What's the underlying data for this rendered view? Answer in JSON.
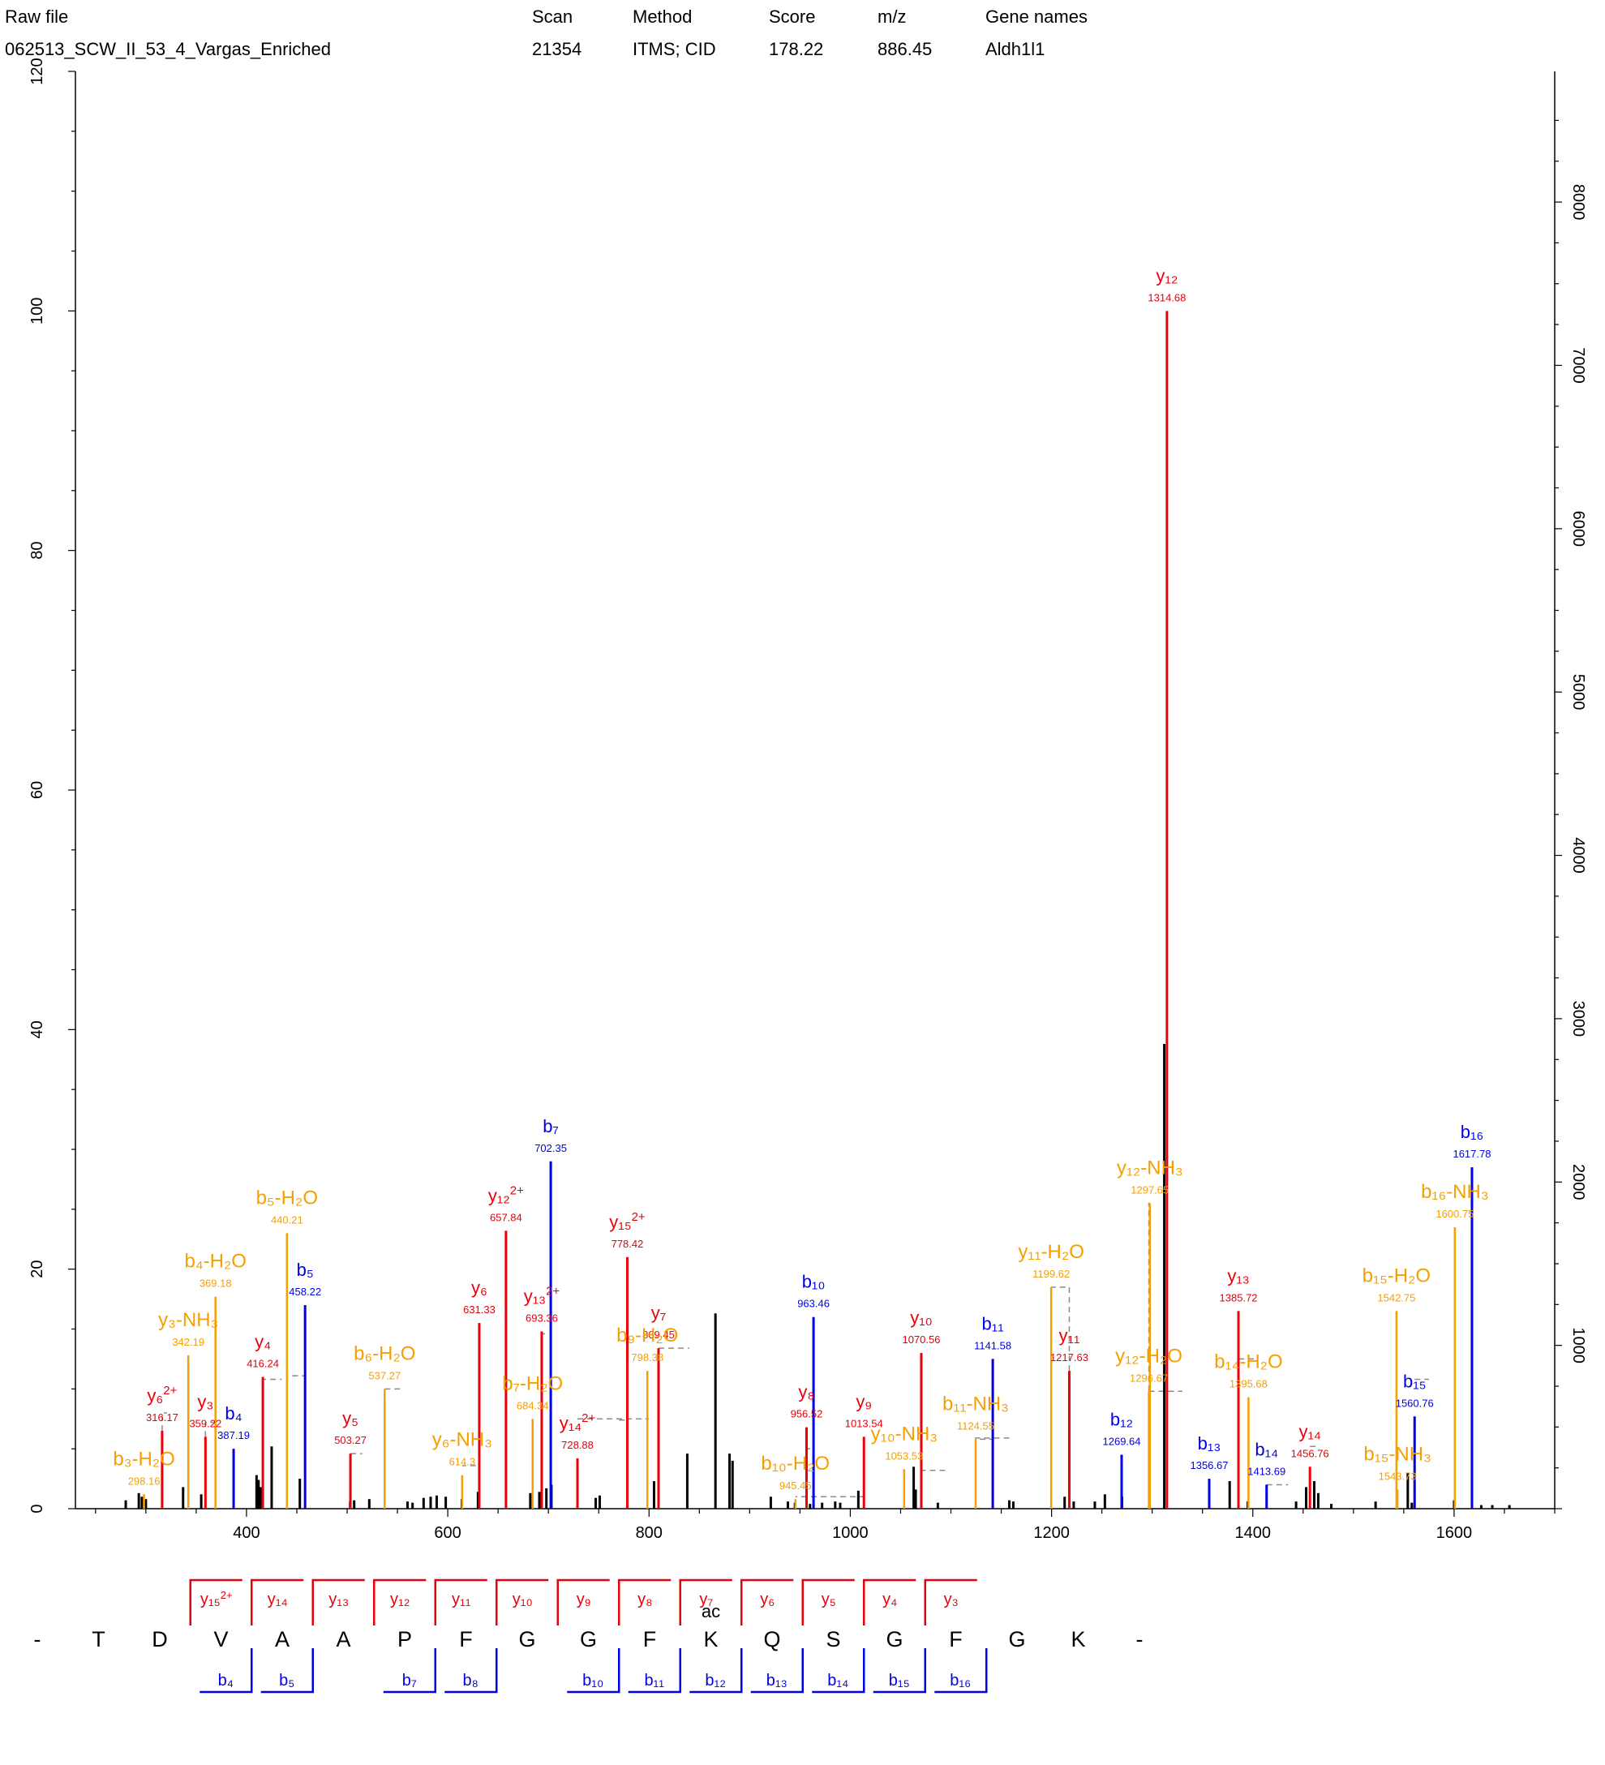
{
  "header": {
    "columns": [
      "Raw file",
      "Scan",
      "Method",
      "Score",
      "m/z",
      "Gene names"
    ],
    "values": [
      "062513_SCW_II_53_4_Vargas_Enriched",
      "21354",
      "ITMS; CID",
      "178.22",
      "886.45",
      "Aldh1l1"
    ]
  },
  "colors": {
    "y": "#e8000a",
    "b": "#0000e6",
    "neutral_loss": "#f5a000",
    "unassigned": "#000000",
    "guide": "#8a8a8a"
  },
  "chart_data": {
    "type": "bar",
    "title": "",
    "xlabel": "",
    "ylabel": "",
    "xlim": [
      230,
      1700
    ],
    "ylim": [
      0,
      120
    ],
    "ylim_right": [
      0,
      8800
    ],
    "x_ticks": [
      400,
      600,
      800,
      1000,
      1200,
      1400,
      1600
    ],
    "y_ticks": [
      0,
      20,
      40,
      60,
      80,
      100,
      120
    ],
    "y_ticks_right": [
      1000,
      2000,
      3000,
      4000,
      5000,
      6000,
      7000,
      8000
    ],
    "grid": false,
    "legend": "none",
    "annotated_peaks": [
      {
        "label": "y12",
        "sup": "",
        "x": 1314.68,
        "y": 100,
        "mz": "1314.68",
        "ion": "y"
      },
      {
        "label": "b7",
        "sup": "",
        "x": 702.35,
        "y": 29,
        "mz": "702.35",
        "ion": "b"
      },
      {
        "label": "b16",
        "sup": "",
        "x": 1617.78,
        "y": 28.5,
        "mz": "1617.78",
        "ion": "b"
      },
      {
        "label": "y12-NH3",
        "sup": "",
        "x": 1297.65,
        "y": 25.5,
        "mz": "1297.65",
        "ion": "nl"
      },
      {
        "label": "b16-NH3",
        "sup": "",
        "x": 1600.75,
        "y": 23.5,
        "mz": "1600.75",
        "ion": "nl"
      },
      {
        "label": "y12",
        "sup": "2+",
        "x": 657.84,
        "y": 23.2,
        "mz": "657.84",
        "ion": "y"
      },
      {
        "label": "b5-H2O",
        "sup": "",
        "x": 440.21,
        "y": 23,
        "mz": "440.21",
        "ion": "nl"
      },
      {
        "label": "y15",
        "sup": "2+",
        "x": 778.42,
        "y": 21,
        "mz": "778.42",
        "ion": "y"
      },
      {
        "label": "b4-H2O",
        "sup": "",
        "x": 369.18,
        "y": 17.7,
        "mz": "369.18",
        "ion": "nl"
      },
      {
        "label": "y11-H2O",
        "sup": "",
        "x": 1199.62,
        "y": 18.5,
        "mz": "1199.62",
        "ion": "nl"
      },
      {
        "label": "b5",
        "sup": "",
        "x": 458.22,
        "y": 17,
        "mz": "458.22",
        "ion": "b"
      },
      {
        "label": "b15-H2O",
        "sup": "",
        "x": 1542.75,
        "y": 16.5,
        "mz": "1542.75",
        "ion": "nl"
      },
      {
        "label": "y6",
        "sup": "",
        "x": 631.33,
        "y": 15.5,
        "mz": "631.33",
        "ion": "y"
      },
      {
        "label": "y13",
        "sup": "2+",
        "x": 693.36,
        "y": 14.8,
        "mz": "693.36",
        "ion": "y"
      },
      {
        "label": "b10",
        "sup": "",
        "x": 963.46,
        "y": 16,
        "mz": "963.46",
        "ion": "b"
      },
      {
        "label": "y13",
        "sup": "",
        "x": 1385.72,
        "y": 16.5,
        "mz": "1385.72",
        "ion": "y"
      },
      {
        "label": "y7",
        "sup": "",
        "x": 809.45,
        "y": 13.4,
        "mz": "809.45",
        "ion": "y"
      },
      {
        "label": "y3-NH3",
        "sup": "",
        "x": 342.19,
        "y": 12.8,
        "mz": "342.19",
        "ion": "nl"
      },
      {
        "label": "b9-H2O",
        "sup": "",
        "x": 798.38,
        "y": 11.5,
        "mz": "798.38",
        "ion": "nl"
      },
      {
        "label": "y10",
        "sup": "",
        "x": 1070.56,
        "y": 13,
        "mz": "1070.56",
        "ion": "y"
      },
      {
        "label": "b11",
        "sup": "",
        "x": 1141.58,
        "y": 12.5,
        "mz": "1141.58",
        "ion": "b"
      },
      {
        "label": "y4",
        "sup": "",
        "x": 416.24,
        "y": 11,
        "mz": "416.24",
        "ion": "y"
      },
      {
        "label": "b6-H2O",
        "sup": "",
        "x": 537.27,
        "y": 10,
        "mz": "537.27",
        "ion": "nl"
      },
      {
        "label": "y11",
        "sup": "",
        "x": 1217.63,
        "y": 11.5,
        "mz": "1217.63",
        "ion": "y"
      },
      {
        "label": "y12-H2O",
        "sup": "",
        "x": 1296.67,
        "y": 9.8,
        "mz": "1296.67",
        "ion": "nl"
      },
      {
        "label": "b14-H2O",
        "sup": "",
        "x": 1395.68,
        "y": 9.3,
        "mz": "1395.68",
        "ion": "nl"
      },
      {
        "label": "b7-H2O",
        "sup": "",
        "x": 684.34,
        "y": 7.5,
        "mz": "684.34",
        "ion": "nl"
      },
      {
        "label": "y6",
        "sup": "2+",
        "x": 316.17,
        "y": 6.5,
        "mz": "316.17",
        "ion": "y"
      },
      {
        "label": "b4",
        "sup": "",
        "x": 387.19,
        "y": 5,
        "mz": "387.19",
        "ion": "b"
      },
      {
        "label": "y8",
        "sup": "",
        "x": 956.52,
        "y": 6.8,
        "mz": "956.52",
        "ion": "y"
      },
      {
        "label": "y9",
        "sup": "",
        "x": 1013.54,
        "y": 6,
        "mz": "1013.54",
        "ion": "y"
      },
      {
        "label": "b15",
        "sup": "",
        "x": 1560.76,
        "y": 7.7,
        "mz": "1560.76",
        "ion": "b"
      },
      {
        "label": "y5",
        "sup": "",
        "x": 503.27,
        "y": 4.6,
        "mz": "503.27",
        "ion": "y"
      },
      {
        "label": "y3",
        "sup": "",
        "x": 359.22,
        "y": 6,
        "mz": "359.22",
        "ion": "y"
      },
      {
        "label": "y14",
        "sup": "2+",
        "x": 728.88,
        "y": 4.2,
        "mz": "728.88",
        "ion": "y"
      },
      {
        "label": "b11-NH3",
        "sup": "",
        "x": 1124.55,
        "y": 5.8,
        "mz": "1124.55",
        "ion": "nl"
      },
      {
        "label": "b12",
        "sup": "",
        "x": 1269.64,
        "y": 4.5,
        "mz": "1269.64",
        "ion": "b"
      },
      {
        "label": "y6-NH3",
        "sup": "",
        "x": 614.3,
        "y": 2.8,
        "mz": "614.3",
        "ion": "nl"
      },
      {
        "label": "y10-NH3",
        "sup": "",
        "x": 1053.53,
        "y": 3.3,
        "mz": "1053.53",
        "ion": "nl"
      },
      {
        "label": "b13",
        "sup": "",
        "x": 1356.67,
        "y": 2.5,
        "mz": "1356.67",
        "ion": "b"
      },
      {
        "label": "b14",
        "sup": "",
        "x": 1413.69,
        "y": 2,
        "mz": "1413.69",
        "ion": "b"
      },
      {
        "label": "y14",
        "sup": "",
        "x": 1456.76,
        "y": 3.5,
        "mz": "1456.76",
        "ion": "y"
      },
      {
        "label": "b3-H2O",
        "sup": "",
        "x": 298.16,
        "y": 1.2,
        "mz": "298.16",
        "ion": "nl"
      },
      {
        "label": "b10-H2O",
        "sup": "",
        "x": 945.45,
        "y": 0.8,
        "mz": "945.45",
        "ion": "nl"
      },
      {
        "label": "b15-NH3",
        "sup": "",
        "x": 1543.73,
        "y": 1.6,
        "mz": "1543.73",
        "ion": "nl"
      }
    ],
    "unassigned_peaks": [
      [
        280,
        0.7
      ],
      [
        293,
        1.3
      ],
      [
        296,
        1
      ],
      [
        300,
        0.8
      ],
      [
        337,
        1.8
      ],
      [
        355,
        1.2
      ],
      [
        410,
        2.8
      ],
      [
        412,
        2.4
      ],
      [
        414,
        1.8
      ],
      [
        425,
        5.2
      ],
      [
        453,
        2.5
      ],
      [
        503,
        0.6
      ],
      [
        507,
        0.7
      ],
      [
        522,
        0.8
      ],
      [
        560,
        0.6
      ],
      [
        565,
        0.5
      ],
      [
        576,
        0.9
      ],
      [
        583,
        1
      ],
      [
        589,
        1.1
      ],
      [
        598,
        1
      ],
      [
        614,
        0.8
      ],
      [
        630,
        1.4
      ],
      [
        682,
        1.3
      ],
      [
        691,
        1.4
      ],
      [
        698,
        1.7
      ],
      [
        703,
        2
      ],
      [
        747,
        0.9
      ],
      [
        751,
        1.1
      ],
      [
        805,
        2.3
      ],
      [
        838,
        4.6
      ],
      [
        866,
        16.3
      ],
      [
        880,
        4.6
      ],
      [
        883,
        4
      ],
      [
        921,
        1
      ],
      [
        938,
        0.6
      ],
      [
        945,
        0.5
      ],
      [
        960,
        0.4
      ],
      [
        972,
        0.5
      ],
      [
        985,
        0.6
      ],
      [
        990,
        0.5
      ],
      [
        1008,
        1.5
      ],
      [
        1063,
        3.5
      ],
      [
        1065,
        1.6
      ],
      [
        1087,
        0.5
      ],
      [
        1158,
        0.7
      ],
      [
        1162,
        0.6
      ],
      [
        1213,
        1
      ],
      [
        1222,
        0.6
      ],
      [
        1243,
        0.6
      ],
      [
        1253,
        1.2
      ],
      [
        1270,
        1
      ],
      [
        1312,
        38.8
      ],
      [
        1377,
        2.3
      ],
      [
        1395,
        0.6
      ],
      [
        1443,
        0.6
      ],
      [
        1453,
        1.8
      ],
      [
        1461,
        2.3
      ],
      [
        1465,
        1.3
      ],
      [
        1478,
        0.4
      ],
      [
        1522,
        0.6
      ],
      [
        1554,
        3
      ],
      [
        1558,
        0.5
      ],
      [
        1600,
        0.7
      ],
      [
        1627,
        0.3
      ],
      [
        1638,
        0.3
      ],
      [
        1655,
        0.3
      ]
    ],
    "guide_lines": [
      [
        316.17,
        6.5,
        321,
        8.0
      ],
      [
        359.22,
        6.0,
        373,
        7.2
      ],
      [
        416.24,
        11.0,
        435,
        10.8
      ],
      [
        458.22,
        17.0,
        440.21,
        11.1
      ],
      [
        503.27,
        4.6,
        515,
        4.6
      ],
      [
        537.27,
        10.0,
        555,
        10.0
      ],
      [
        631.33,
        15.5,
        614.3,
        3.6
      ],
      [
        693.36,
        14.8,
        700,
        14.6
      ],
      [
        778.42,
        21.0,
        770,
        7.4
      ],
      [
        809.45,
        13.4,
        840,
        13.4
      ],
      [
        728.88,
        7.5,
        800,
        7.5
      ],
      [
        956.52,
        6.8,
        963.46,
        5.0
      ],
      [
        1013.54,
        6.0,
        945.45,
        1.0
      ],
      [
        1070.56,
        3.3,
        1095,
        3.2
      ],
      [
        1141.58,
        12.5,
        1124.55,
        5.8
      ],
      [
        1124.55,
        5.8,
        1160,
        5.9
      ],
      [
        1217.63,
        11.5,
        1199.62,
        18.5
      ],
      [
        1296.67,
        9.8,
        1297.65,
        25.5
      ],
      [
        1296.67,
        9.8,
        1330,
        9.8
      ],
      [
        1385.72,
        16.5,
        1385.72,
        2.5
      ],
      [
        1385.72,
        12.5,
        1405,
        12.5
      ],
      [
        1413.69,
        2.0,
        1435,
        2.0
      ],
      [
        1456.76,
        5.2,
        1465,
        5.2
      ],
      [
        1542.75,
        16.5,
        1542.75,
        1.6
      ],
      [
        1560.76,
        10.8,
        1575,
        10.8
      ],
      [
        1600.75,
        23.5,
        1600.75,
        0.7
      ],
      [
        1617.78,
        28.5,
        1617.78,
        7.7
      ]
    ],
    "sequence": {
      "residues": [
        "-",
        "T",
        "D",
        "V",
        "A",
        "A",
        "P",
        "F",
        "G",
        "G",
        "F",
        "K",
        "Q",
        "S",
        "G",
        "F",
        "G",
        "K",
        "-"
      ],
      "modification": {
        "index": 11,
        "label": "ac"
      },
      "y_ions": [
        {
          "gap": 3,
          "label": "y15",
          "sup": "2+"
        },
        {
          "gap": 4,
          "label": "y14",
          "sup": ""
        },
        {
          "gap": 5,
          "label": "y13",
          "sup": ""
        },
        {
          "gap": 6,
          "label": "y12",
          "sup": ""
        },
        {
          "gap": 7,
          "label": "y11",
          "sup": ""
        },
        {
          "gap": 8,
          "label": "y10",
          "sup": ""
        },
        {
          "gap": 9,
          "label": "y9",
          "sup": ""
        },
        {
          "gap": 10,
          "label": "y8",
          "sup": ""
        },
        {
          "gap": 11,
          "label": "y7",
          "sup": ""
        },
        {
          "gap": 12,
          "label": "y6",
          "sup": ""
        },
        {
          "gap": 13,
          "label": "y5",
          "sup": ""
        },
        {
          "gap": 14,
          "label": "y4",
          "sup": ""
        },
        {
          "gap": 15,
          "label": "y3",
          "sup": ""
        }
      ],
      "b_ions": [
        {
          "gap": 4,
          "label": "b4"
        },
        {
          "gap": 5,
          "label": "b5"
        },
        {
          "gap": 7,
          "label": "b7"
        },
        {
          "gap": 8,
          "label": "b8"
        },
        {
          "gap": 10,
          "label": "b10"
        },
        {
          "gap": 11,
          "label": "b11"
        },
        {
          "gap": 12,
          "label": "b12"
        },
        {
          "gap": 13,
          "label": "b13"
        },
        {
          "gap": 14,
          "label": "b14"
        },
        {
          "gap": 15,
          "label": "b15"
        },
        {
          "gap": 16,
          "label": "b16"
        }
      ]
    }
  }
}
